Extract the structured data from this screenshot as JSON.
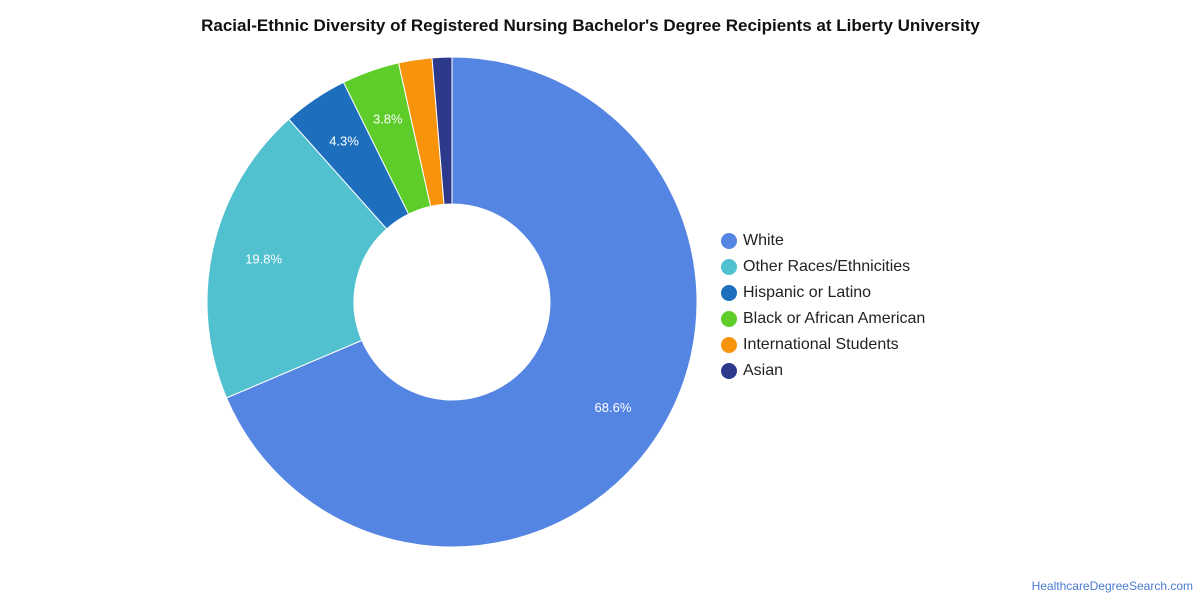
{
  "chart_data": {
    "type": "pie",
    "title": "Racial-Ethnic Diversity of Registered Nursing Bachelor's Degree Recipients at Liberty University",
    "donut": true,
    "legend_position": "right",
    "categories": [
      "White",
      "Other Races/Ethnicities",
      "Hispanic or Latino",
      "Black or African American",
      "International Students",
      "Asian"
    ],
    "values": [
      68.6,
      19.8,
      4.3,
      3.8,
      2.2,
      1.3
    ],
    "data_labels": [
      "68.6%",
      "19.8%",
      "4.3%",
      "3.8%",
      "",
      ""
    ],
    "colors": [
      "#5485e3",
      "#51c1cf",
      "#1d6fbe",
      "#5ecd2a",
      "#f7940c",
      "#2d3a8c"
    ]
  },
  "source": "HealthcareDegreeSearch.com"
}
